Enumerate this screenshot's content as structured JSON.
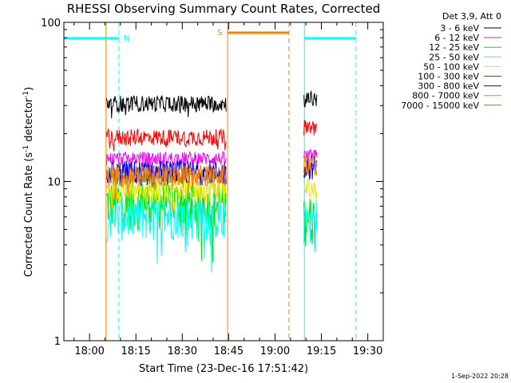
{
  "chart_data": {
    "type": "line",
    "title": "RHESSI Observing Summary Count Rates, Corrected",
    "xlabel": "Start Time (23-Dec-16 17:51:42)",
    "ylabel_main": "Corrected Count Rate (s",
    "ylabel_sup1": "-1",
    "ylabel_mid": " detector",
    "ylabel_sup2": "-1",
    "ylabel_end": ")",
    "y_scale": "log",
    "ylim": [
      1,
      100
    ],
    "xlim": [
      "17:51:42",
      "19:35:00"
    ],
    "x_ticks": [
      "18:00",
      "18:15",
      "18:30",
      "18:45",
      "19:00",
      "19:15",
      "19:30"
    ],
    "y_ticks": [
      "1",
      "10",
      "100"
    ],
    "legend_title": "Det 3,9, Att 0",
    "legend_position": "top-right",
    "timestamp": "1-Sep-2022 20:28",
    "segments": [
      {
        "start": "18:05:30",
        "end": "18:44:20"
      },
      {
        "start": "19:09:20",
        "end": "19:13:40"
      }
    ],
    "series": [
      {
        "name": "3 - 6 keV",
        "color": "#000000",
        "values": [
          31,
          33
        ]
      },
      {
        "name": "6 - 12 keV",
        "color": "#ff00ff",
        "values": [
          14,
          14.5
        ]
      },
      {
        "name": "12 - 25 keV",
        "color": "#00e000",
        "values": [
          7.5,
          6
        ]
      },
      {
        "name": "25 - 50 keV",
        "color": "#00ffff",
        "values": [
          6.2,
          6
        ]
      },
      {
        "name": "50 - 100 keV",
        "color": "#e6e600",
        "values": [
          9,
          9
        ]
      },
      {
        "name": "100 - 300 keV",
        "color": "#ff0000",
        "values": [
          19,
          22
        ]
      },
      {
        "name": "300 - 800 keV",
        "color": "#0000ff",
        "values": [
          11.5,
          12.5
        ]
      },
      {
        "name": "800 - 7000 keV",
        "color": "#ff8000",
        "values": [
          11,
          13
        ]
      },
      {
        "name": "7000 - 15000 keV",
        "color": "#808000",
        "values": [
          11,
          12
        ]
      }
    ],
    "night_marks": [
      {
        "label": "N",
        "color": "#00ffff",
        "start": "17:51:42",
        "end": "18:09:30"
      },
      {
        "label": "",
        "color": "#00ffff",
        "start": "19:09:30",
        "end": "19:26:10"
      }
    ],
    "saa_marks": [
      {
        "label": "S",
        "color": "#ff8000",
        "start": "18:44:40",
        "end": "19:04:30"
      }
    ],
    "solid_lines": [
      {
        "time": "17:51:42",
        "color": "#00ffff"
      },
      {
        "time": "18:05:20",
        "color": "#ff8000"
      },
      {
        "time": "18:44:40",
        "color": "#ff8000"
      },
      {
        "time": "19:09:30",
        "color": "#00ffff"
      }
    ],
    "dashed_lines": [
      {
        "time": "18:09:30",
        "color": "#00ffff"
      },
      {
        "time": "19:04:30",
        "color": "#ff8000"
      },
      {
        "time": "19:26:10",
        "color": "#00ffff"
      }
    ]
  }
}
